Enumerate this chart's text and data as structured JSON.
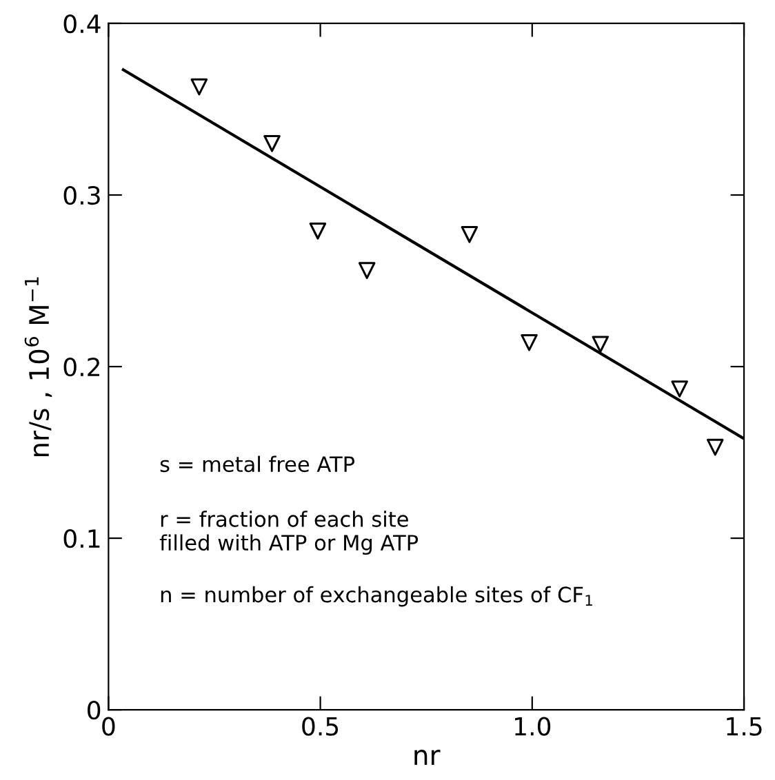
{
  "chart_data": {
    "type": "scatter",
    "xlabel": "nr",
    "ylabel": "nr/s , 10$^{6}$ M$^{−1}$",
    "xlim": [
      0,
      1.5
    ],
    "ylim": [
      0,
      0.4
    ],
    "xticks": [
      0,
      0.5,
      {
        "value": 1,
        "label": "1.0"
      },
      1.5
    ],
    "yticks": [
      0,
      0.1,
      0.2,
      0.3,
      0.4
    ],
    "grid": false,
    "marker": "triangle",
    "series": [
      {
        "color": "#000000",
        "x": [
          0.214,
          0.386,
          0.494,
          0.61,
          0.852,
          0.993,
          1.161,
          1.348,
          1.432
        ],
        "values": [
          0.363,
          0.33,
          0.279,
          0.256,
          0.277,
          0.214,
          0.213,
          0.187,
          0.153
        ]
      },
      {
        "type": "line",
        "color": "#000000",
        "marker": "none",
        "line_style": "solid",
        "x": [
          0.035,
          1.5
        ],
        "values": [
          0.373,
          0.158
        ]
      }
    ],
    "annotations": [
      "s = metal free ATP",
      "r = fraction of each site\nfilled with ATP or Mg ATP",
      "n = number of exchangeable sites of CF$_{1}$"
    ]
  }
}
